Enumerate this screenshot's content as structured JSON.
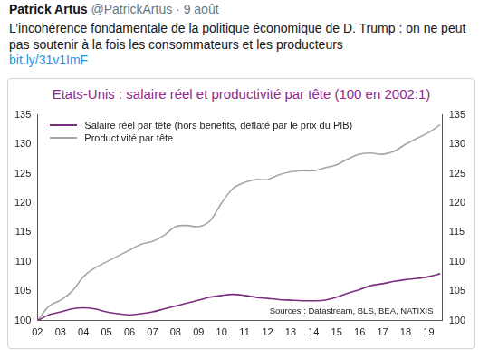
{
  "tweet": {
    "name": "Patrick Artus",
    "handle": "@PatrickArtus",
    "separator": "·",
    "date": "9 août",
    "text": "L’incohérence fondamentale de la politique économique de D. Trump : on ne peut pas soutenir à la fois les consommateurs et les producteurs",
    "link": "bit.ly/31v1ImF"
  },
  "chart_data": {
    "type": "line",
    "title": "Etats-Unis : salaire réel et productivité par tête (100 en 2002:1)",
    "annotations": [
      "Sources : Datastream, BLS, BEA, NATIXIS"
    ],
    "x": [
      2002,
      2002.5,
      2003,
      2003.5,
      2004,
      2004.5,
      2005,
      2005.5,
      2006,
      2006.5,
      2007,
      2007.5,
      2008,
      2008.5,
      2009,
      2009.5,
      2010,
      2010.5,
      2011,
      2011.5,
      2012,
      2012.5,
      2013,
      2013.5,
      2014,
      2014.5,
      2015,
      2015.5,
      2016,
      2016.5,
      2017,
      2017.5,
      2018,
      2018.5,
      2019,
      2019.5
    ],
    "series": [
      {
        "name": "Salaire réel par tête (hors benefits, déflaté par le prix du PIB)",
        "color": "#7b2f7f",
        "values": [
          100,
          101,
          101.5,
          102,
          102.2,
          102,
          101.5,
          101.2,
          101,
          101.2,
          101.5,
          102,
          102.5,
          103,
          103.5,
          104,
          104.3,
          104.5,
          104.3,
          104,
          103.8,
          103.6,
          103.5,
          103.4,
          103.4,
          103.5,
          104,
          104.7,
          105.3,
          106,
          106.3,
          106.7,
          107,
          107.2,
          107.5,
          108
        ]
      },
      {
        "name": "Productivité par tête",
        "color": "#a6a6a6",
        "values": [
          100,
          102.5,
          103.5,
          105,
          107.5,
          109,
          110,
          111,
          112,
          113,
          113.5,
          114.5,
          116,
          116.2,
          116,
          117,
          120,
          122.5,
          123.5,
          124,
          124,
          124.8,
          125.3,
          125.5,
          125.5,
          126,
          126.5,
          127.5,
          128.3,
          128.5,
          128.3,
          128.8,
          130,
          131,
          132,
          133.3
        ]
      }
    ],
    "xlim": [
      2002,
      2019.6
    ],
    "xticks": [
      {
        "value": 2002,
        "label": "02"
      },
      {
        "value": 2003,
        "label": "03"
      },
      {
        "value": 2004,
        "label": "04"
      },
      {
        "value": 2005,
        "label": "05"
      },
      {
        "value": 2006,
        "label": "06"
      },
      {
        "value": 2007,
        "label": "07"
      },
      {
        "value": 2008,
        "label": "08"
      },
      {
        "value": 2009,
        "label": "09"
      },
      {
        "value": 2010,
        "label": "10"
      },
      {
        "value": 2011,
        "label": "11"
      },
      {
        "value": 2012,
        "label": "12"
      },
      {
        "value": 2013,
        "label": "13"
      },
      {
        "value": 2014,
        "label": "14"
      },
      {
        "value": 2015,
        "label": "15"
      },
      {
        "value": 2016,
        "label": "16"
      },
      {
        "value": 2017,
        "label": "17"
      },
      {
        "value": 2018,
        "label": "18"
      },
      {
        "value": 2019,
        "label": "19"
      }
    ],
    "ylim": [
      100,
      135
    ],
    "yticks": [
      100,
      105,
      110,
      115,
      120,
      125,
      130,
      135
    ],
    "y2lim": [
      100,
      135
    ],
    "y2ticks": [
      100,
      105,
      110,
      115,
      120,
      125,
      130,
      135
    ],
    "grid": false,
    "legend": "upper left"
  }
}
